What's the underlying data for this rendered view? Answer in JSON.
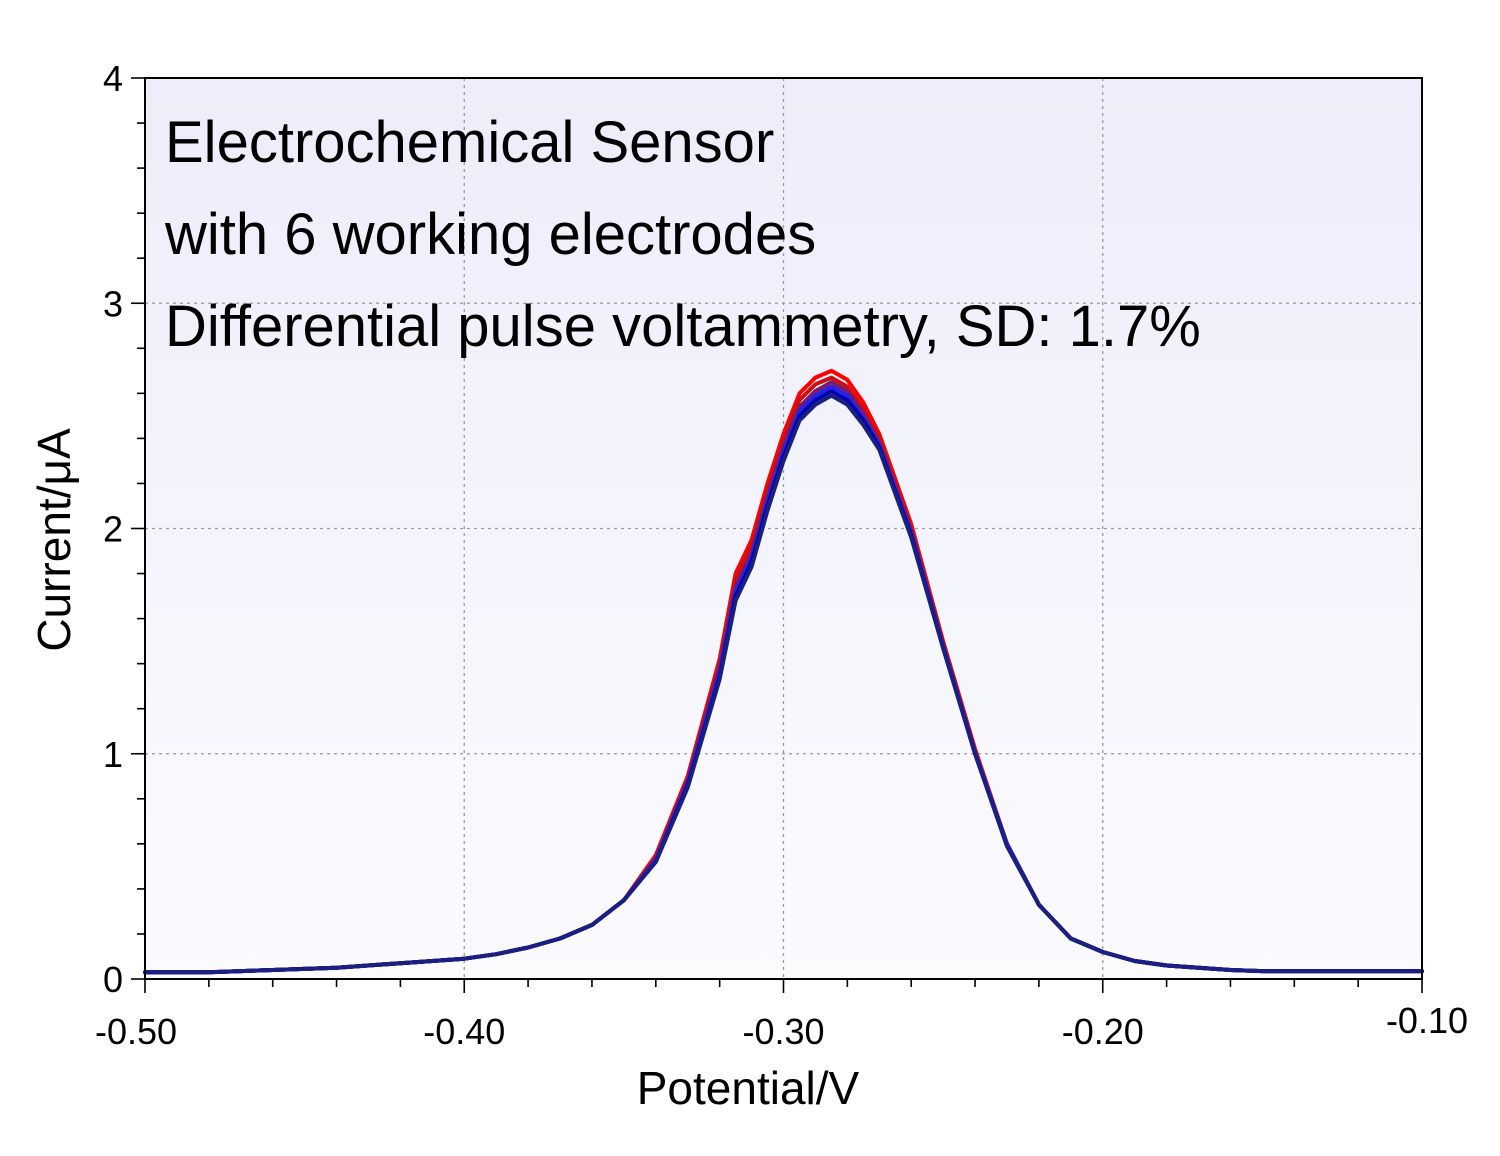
{
  "chart_data": {
    "type": "line",
    "xlabel": "Potential/V",
    "ylabel": "Current/μA",
    "xlim": [
      -0.5,
      -0.1
    ],
    "ylim": [
      0,
      4
    ],
    "grid": true,
    "x_ticks": [
      -0.5,
      -0.4,
      -0.3,
      -0.2,
      -0.1
    ],
    "x_tick_labels": [
      "-0.50",
      "-0.40",
      "-0.30",
      "-0.20",
      "-0.10"
    ],
    "y_ticks": [
      0,
      1,
      2,
      3,
      4
    ],
    "y_tick_labels": [
      "0",
      "1",
      "2",
      "3",
      "4"
    ],
    "annotations": [
      "Electrochemical Sensor",
      "with 6 working electrodes",
      "Differential pulse voltammetry, SD: 1.7%"
    ],
    "plot_background_top": "#ededfb",
    "plot_background_bottom": "#fbfbfe",
    "x": [
      -0.5,
      -0.48,
      -0.46,
      -0.44,
      -0.42,
      -0.4,
      -0.39,
      -0.38,
      -0.37,
      -0.36,
      -0.35,
      -0.34,
      -0.33,
      -0.32,
      -0.315,
      -0.31,
      -0.305,
      -0.3,
      -0.295,
      -0.29,
      -0.285,
      -0.28,
      -0.275,
      -0.27,
      -0.26,
      -0.25,
      -0.24,
      -0.23,
      -0.22,
      -0.21,
      -0.2,
      -0.19,
      -0.18,
      -0.17,
      -0.16,
      -0.15,
      -0.13,
      -0.1
    ],
    "series": [
      {
        "color": "#ff0000",
        "values": [
          0.03,
          0.03,
          0.04,
          0.05,
          0.07,
          0.09,
          0.11,
          0.14,
          0.18,
          0.24,
          0.35,
          0.55,
          0.9,
          1.42,
          1.8,
          1.95,
          2.2,
          2.42,
          2.6,
          2.67,
          2.7,
          2.66,
          2.56,
          2.42,
          2.02,
          1.5,
          1.02,
          0.6,
          0.33,
          0.18,
          0.12,
          0.08,
          0.06,
          0.05,
          0.04,
          0.035,
          0.035,
          0.035
        ]
      },
      {
        "color": "#cc1010",
        "values": [
          0.03,
          0.03,
          0.04,
          0.05,
          0.07,
          0.09,
          0.11,
          0.14,
          0.18,
          0.24,
          0.35,
          0.54,
          0.89,
          1.4,
          1.77,
          1.92,
          2.17,
          2.39,
          2.57,
          2.64,
          2.67,
          2.63,
          2.53,
          2.4,
          2.0,
          1.49,
          1.01,
          0.6,
          0.33,
          0.18,
          0.12,
          0.08,
          0.06,
          0.05,
          0.04,
          0.035,
          0.035,
          0.035
        ]
      },
      {
        "color": "#7a1a6a",
        "values": [
          0.03,
          0.03,
          0.04,
          0.05,
          0.07,
          0.09,
          0.11,
          0.14,
          0.18,
          0.24,
          0.35,
          0.53,
          0.88,
          1.38,
          1.74,
          1.89,
          2.14,
          2.36,
          2.54,
          2.61,
          2.65,
          2.61,
          2.51,
          2.38,
          1.99,
          1.48,
          1.01,
          0.6,
          0.33,
          0.18,
          0.12,
          0.08,
          0.06,
          0.05,
          0.04,
          0.035,
          0.035,
          0.035
        ]
      },
      {
        "color": "#2222ee",
        "values": [
          0.03,
          0.03,
          0.04,
          0.05,
          0.07,
          0.09,
          0.11,
          0.14,
          0.18,
          0.24,
          0.35,
          0.53,
          0.87,
          1.36,
          1.72,
          1.87,
          2.12,
          2.34,
          2.52,
          2.59,
          2.63,
          2.59,
          2.49,
          2.37,
          1.98,
          1.48,
          1.0,
          0.6,
          0.33,
          0.18,
          0.12,
          0.08,
          0.06,
          0.05,
          0.04,
          0.035,
          0.035,
          0.035
        ]
      },
      {
        "color": "#0000aa",
        "values": [
          0.03,
          0.03,
          0.04,
          0.05,
          0.07,
          0.09,
          0.11,
          0.14,
          0.18,
          0.24,
          0.35,
          0.52,
          0.86,
          1.34,
          1.7,
          1.85,
          2.1,
          2.32,
          2.5,
          2.57,
          2.61,
          2.57,
          2.48,
          2.36,
          1.97,
          1.47,
          1.0,
          0.59,
          0.33,
          0.18,
          0.12,
          0.08,
          0.06,
          0.05,
          0.04,
          0.035,
          0.035,
          0.035
        ]
      },
      {
        "color": "#1a2080",
        "values": [
          0.03,
          0.03,
          0.04,
          0.05,
          0.07,
          0.09,
          0.11,
          0.14,
          0.18,
          0.24,
          0.35,
          0.52,
          0.85,
          1.33,
          1.68,
          1.83,
          2.08,
          2.3,
          2.48,
          2.55,
          2.59,
          2.55,
          2.46,
          2.35,
          1.96,
          1.47,
          1.0,
          0.59,
          0.33,
          0.18,
          0.12,
          0.08,
          0.06,
          0.05,
          0.04,
          0.035,
          0.035,
          0.035
        ]
      }
    ]
  }
}
